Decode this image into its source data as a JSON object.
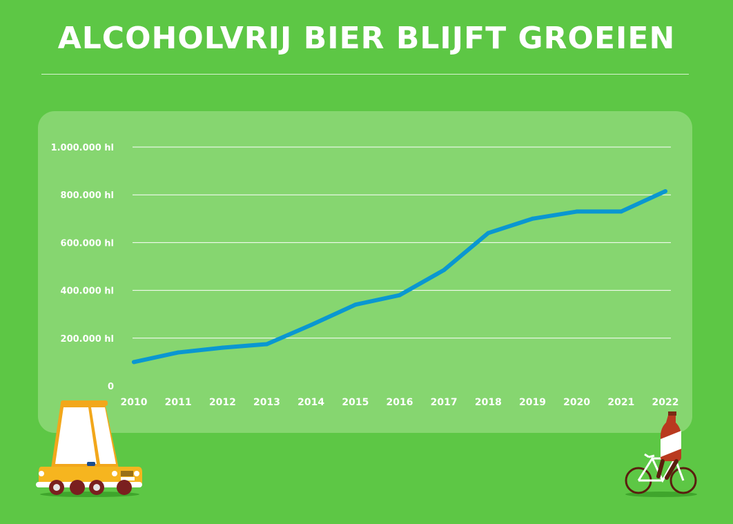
{
  "title": "ALCOHOLVRIJ BIER BLIJFT GROEIEN",
  "colors": {
    "background": "#5dc745",
    "panel": "#86d670",
    "line": "#0a97d1",
    "text": "#ffffff"
  },
  "icons": [
    "car-icon",
    "bicycle-bottle-icon"
  ],
  "chart_data": {
    "type": "line",
    "title": "ALCOHOLVRIJ BIER BLIJFT GROEIEN",
    "xlabel": "",
    "ylabel": "",
    "categories": [
      "2010",
      "2011",
      "2012",
      "2013",
      "2014",
      "2015",
      "2016",
      "2017",
      "2018",
      "2019",
      "2020",
      "2021",
      "2022"
    ],
    "y_ticks": [
      0,
      200000,
      400000,
      600000,
      800000,
      1000000
    ],
    "y_tick_labels": [
      "0",
      "200.000 hl",
      "400.000 hl",
      "600.000 hl",
      "800.000 hl",
      "1.000.000 hl"
    ],
    "ylim": [
      0,
      1000000
    ],
    "grid": true,
    "legend": "none",
    "series": [
      {
        "values": [
          100000,
          140000,
          160000,
          175000,
          255000,
          340000,
          380000,
          485000,
          640000,
          700000,
          730000,
          730000,
          815000
        ]
      }
    ]
  }
}
